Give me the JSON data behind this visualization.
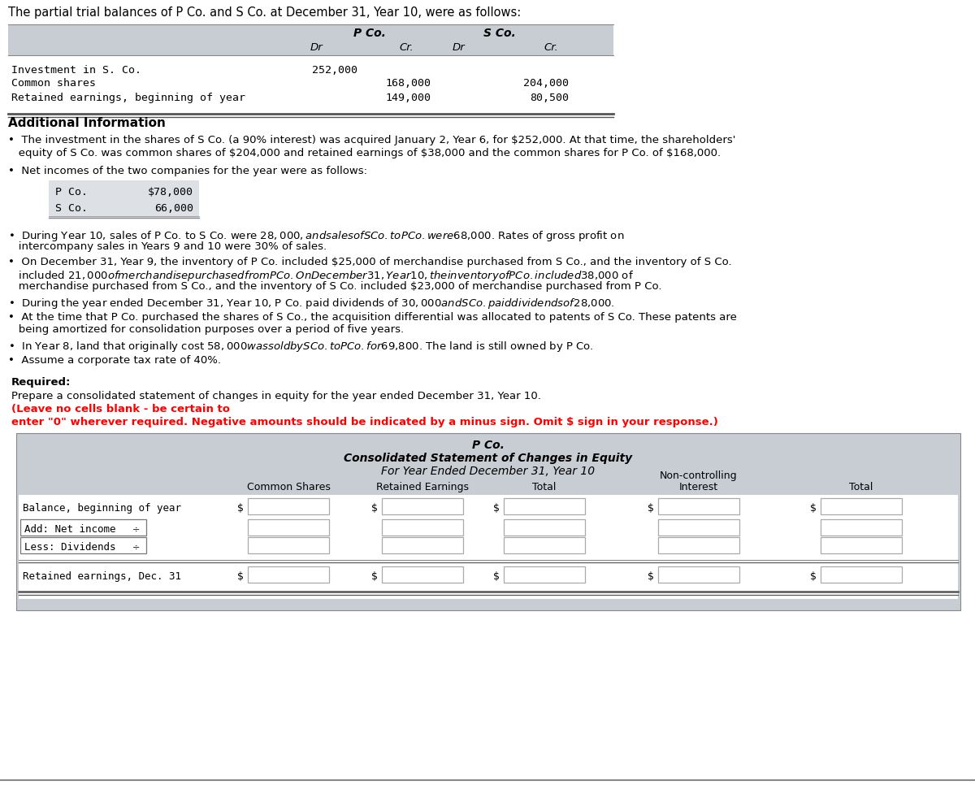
{
  "bg_color": "#ffffff",
  "header_text": "The partial trial balances of P Co. and S Co. at December 31, Year 10, were as follows:",
  "trial_balance_header_bg": "#c8cdd4",
  "trial_balance_white_bg": "#ffffff",
  "tb_row_labels": [
    "Investment in S. Co.",
    "Common shares",
    "Retained earnings, beginning of year"
  ],
  "tb_dr_p": [
    "252,000",
    "",
    ""
  ],
  "tb_cr_p": [
    "",
    "168,000",
    "149,000"
  ],
  "tb_dr_s": [
    "",
    "",
    ""
  ],
  "tb_cr_s": [
    "",
    "204,000",
    "80,500"
  ],
  "additional_info_title": "Additional Information",
  "bullet1_lines": [
    "•  The investment in the shares of S Co. (a 90% interest) was acquired January 2, Year 6, for $252,000. At that time, the shareholders'",
    "   equity of S Co. was common shares of $204,000 and retained earnings of $38,000 and the common shares for P Co. of $168,000."
  ],
  "bullet2": "•  Net incomes of the two companies for the year were as follows:",
  "net_income_rows": [
    [
      "P Co.",
      "$78,000"
    ],
    [
      "S Co.",
      "66,000"
    ]
  ],
  "net_income_bg": "#dde0e5",
  "more_bullet_lines": [
    [
      "•  During Year 10, sales of P Co. to S Co. were $28,000, and sales of S Co. to P Co. were $68,000. Rates of gross profit on",
      "   intercompany sales in Years 9 and 10 were 30% of sales."
    ],
    [
      "•  On December 31, Year 9, the inventory of P Co. included $25,000 of merchandise purchased from S Co., and the inventory of S Co.",
      "   included $21,000 of merchandise purchased from P Co. On December 31, Year 10, the inventory of P Co. included $38,000 of",
      "   merchandise purchased from S Co., and the inventory of S Co. included $23,000 of merchandise purchased from P Co."
    ],
    [
      "•  During the year ended December 31, Year 10, P Co. paid dividends of $30,000 and S Co. paid dividends of $28,000."
    ],
    [
      "•  At the time that P Co. purchased the shares of S Co., the acquisition differential was allocated to patents of S Co. These patents are",
      "   being amortized for consolidation purposes over a period of five years."
    ],
    [
      "•  In Year 8, land that originally cost $58,000 was sold by S Co. to P Co. for $69,800. The land is still owned by P Co."
    ],
    [
      "•  Assume a corporate tax rate of 40%."
    ]
  ],
  "required_title": "Required:",
  "required_text": "Prepare a consolidated statement of changes in equity for the year ended December 31, Year 10.",
  "red_bold_line1": "(Leave no cells blank - be certain to",
  "red_bold_line2": "enter \"0\" wherever required. Negative amounts should be indicated by a minus sign. Omit $ sign in your response.)",
  "statement_bg": "#c8cdd4",
  "statement_title1": "P Co.",
  "statement_title2": "Consolidated Statement of Changes in Equity",
  "statement_title3": "For Year Ended December 31, Year 10",
  "stmt_col_labels": [
    "Common Shares",
    "Retained Earnings",
    "Total",
    "Non-controlling\nInterest",
    "Total"
  ],
  "stmt_row_labels": [
    "Balance, beginning of year",
    "Add: Net income",
    "Less: Dividends",
    "Retained earnings, Dec. 31"
  ]
}
